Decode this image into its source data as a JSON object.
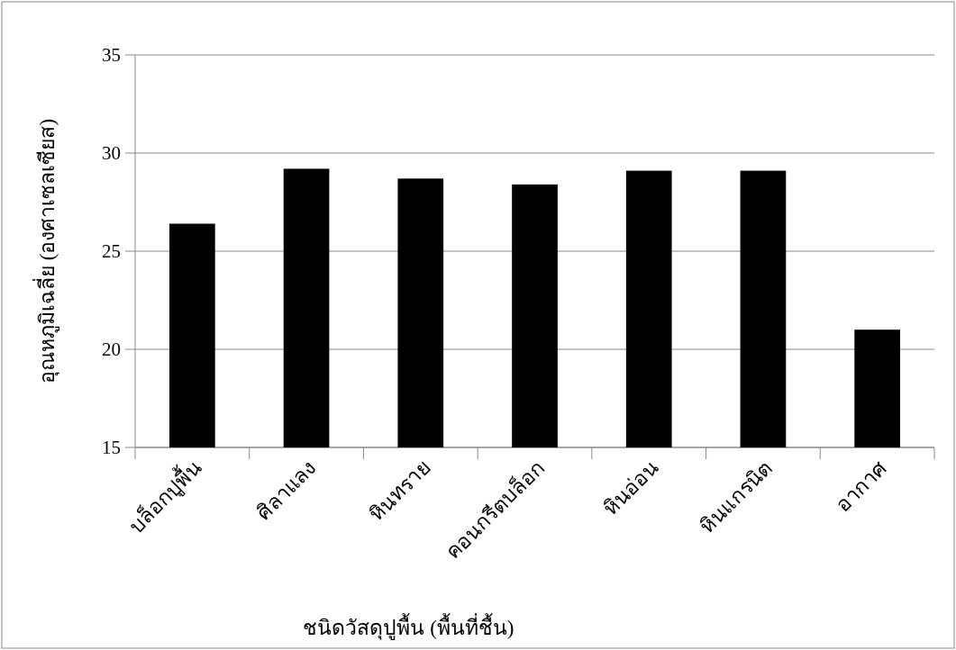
{
  "chart_data": {
    "type": "bar",
    "xlabel": "ชนิดวัสดุปูพื้น (พื้นที่ชื้น)",
    "ylabel": "อุณหภูมิเฉลี่ย (องศาเซลเซียส)",
    "categories": [
      "บล็อกปูพื้น",
      "ศิลาแลง",
      "หินทราย",
      "คอนกรีตบล็อก",
      "หินอ่อน",
      "หินแกรนิต",
      "อากาศ"
    ],
    "values": [
      26.4,
      29.2,
      28.7,
      28.4,
      29.1,
      29.1,
      21.0
    ],
    "color": "#000000",
    "ylim": [
      15,
      35
    ],
    "yticks": [
      15,
      20,
      25,
      30,
      35
    ],
    "grid": "y"
  }
}
